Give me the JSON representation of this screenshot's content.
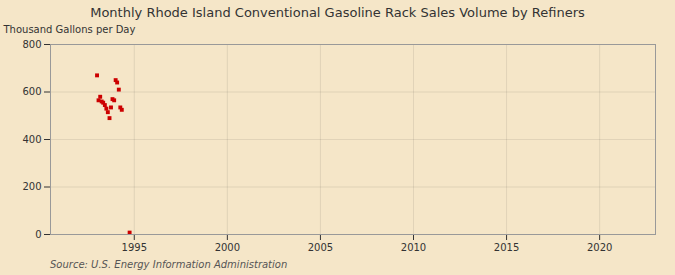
{
  "chart_data": {
    "type": "scatter",
    "title": "Monthly Rhode Island Conventional Gasoline Rack Sales Volume by Refiners",
    "ylabel": "Thousand Gallons per Day",
    "caption": "Source: U.S. Energy Information Administration",
    "color": "#cc0000",
    "marker": "square",
    "grid": true,
    "xlim": [
      1990.5,
      2023
    ],
    "xticks": [
      1995,
      2000,
      2005,
      2010,
      2015,
      2020
    ],
    "ylim": [
      0,
      800
    ],
    "yticks": [
      0,
      200,
      400,
      600,
      800
    ],
    "x": [
      1993.0,
      1993.08,
      1993.17,
      1993.25,
      1993.33,
      1993.42,
      1993.5,
      1993.58,
      1993.67,
      1993.75,
      1993.83,
      1993.92,
      1994.0,
      1994.08,
      1994.17,
      1994.25,
      1994.33,
      1994.75
    ],
    "values": [
      670,
      565,
      580,
      560,
      555,
      545,
      530,
      515,
      490,
      535,
      570,
      565,
      650,
      640,
      610,
      535,
      525,
      8
    ]
  }
}
